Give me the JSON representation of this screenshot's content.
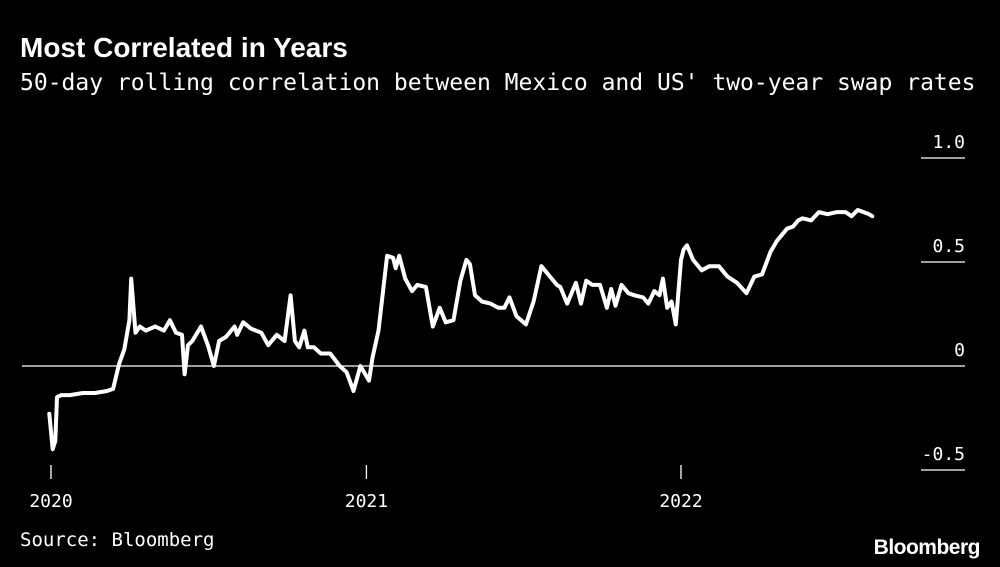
{
  "header": {
    "title": "Most Correlated in Years",
    "subtitle": "50-day rolling correlation between Mexico and US' two-year swap rates"
  },
  "footer": {
    "source": "Source: Bloomberg",
    "brand": "Bloomberg"
  },
  "colors": {
    "background": "#000000",
    "line": "#ffffff",
    "text": "#ffffff"
  },
  "chart_data": {
    "type": "line",
    "title": "Most Correlated in Years",
    "subtitle": "50-day rolling correlation between Mexico and US' two-year swap rates",
    "xlabel": "",
    "ylabel": "",
    "xlim": [
      "2020-01-01",
      "2022-09-01"
    ],
    "ylim": [
      -0.5,
      1.0
    ],
    "x_ticks": [
      {
        "date": "2020-01-01",
        "label": "2020"
      },
      {
        "date": "2021-01-01",
        "label": "2021"
      },
      {
        "date": "2022-01-01",
        "label": "2022"
      }
    ],
    "y_ticks": [
      {
        "value": 1.0,
        "label": "1.0"
      },
      {
        "value": 0.5,
        "label": "0.5"
      },
      {
        "value": 0,
        "label": "0"
      },
      {
        "value": -0.5,
        "label": "-0.5"
      }
    ],
    "grid": false,
    "zero_line": true,
    "legend": "none",
    "series": [
      {
        "x": [
          "2019-12-30",
          "2020-01-03",
          "2020-01-06",
          "2020-01-08",
          "2020-01-13",
          "2020-01-23",
          "2020-02-07",
          "2020-02-21",
          "2020-03-06",
          "2020-03-13",
          "2020-03-20",
          "2020-03-26",
          "2020-04-01",
          "2020-04-03",
          "2020-04-08",
          "2020-04-13",
          "2020-04-20",
          "2020-05-01",
          "2020-05-11",
          "2020-05-18",
          "2020-05-25",
          "2020-06-01",
          "2020-06-04",
          "2020-06-08",
          "2020-06-13",
          "2020-06-23",
          "2020-07-01",
          "2020-07-08",
          "2020-07-14",
          "2020-07-22",
          "2020-08-01",
          "2020-08-04",
          "2020-08-11",
          "2020-08-20",
          "2020-09-01",
          "2020-09-09",
          "2020-09-19",
          "2020-09-28",
          "2020-10-05",
          "2020-10-10",
          "2020-10-15",
          "2020-10-21",
          "2020-10-25",
          "2020-11-01",
          "2020-11-09",
          "2020-11-20",
          "2020-12-01",
          "2020-12-09",
          "2020-12-17",
          "2020-12-25",
          "2021-01-04",
          "2021-01-08",
          "2021-01-15",
          "2021-01-25",
          "2021-02-01",
          "2021-02-04",
          "2021-02-08",
          "2021-02-15",
          "2021-02-23",
          "2021-03-01",
          "2021-03-11",
          "2021-03-19",
          "2021-03-27",
          "2021-04-03",
          "2021-04-12",
          "2021-04-20",
          "2021-04-27",
          "2021-05-01",
          "2021-05-07",
          "2021-05-15",
          "2021-05-25",
          "2021-06-03",
          "2021-06-10",
          "2021-06-16",
          "2021-06-24",
          "2021-07-05",
          "2021-07-14",
          "2021-07-23",
          "2021-08-02",
          "2021-08-10",
          "2021-08-14",
          "2021-08-22",
          "2021-09-01",
          "2021-09-07",
          "2021-09-13",
          "2021-09-20",
          "2021-09-29",
          "2021-10-07",
          "2021-10-12",
          "2021-10-17",
          "2021-10-24",
          "2021-11-01",
          "2021-11-08",
          "2021-11-18",
          "2021-11-24",
          "2021-12-01",
          "2021-12-07",
          "2021-12-11",
          "2021-12-16",
          "2021-12-21",
          "2021-12-26",
          "2022-01-01",
          "2022-01-04",
          "2022-01-08",
          "2022-01-15",
          "2022-01-25",
          "2022-02-03",
          "2022-02-14",
          "2022-02-24",
          "2022-03-07",
          "2022-03-18",
          "2022-03-27",
          "2022-04-05",
          "2022-04-15",
          "2022-04-22",
          "2022-05-04",
          "2022-05-11",
          "2022-05-17",
          "2022-05-22",
          "2022-06-01",
          "2022-06-10",
          "2022-06-20",
          "2022-07-01",
          "2022-07-11",
          "2022-07-18",
          "2022-07-25",
          "2022-08-01",
          "2022-08-07",
          "2022-08-11"
        ],
        "y": [
          -0.23,
          -0.4,
          -0.36,
          -0.15,
          -0.14,
          -0.14,
          -0.13,
          -0.13,
          -0.12,
          -0.11,
          0.01,
          0.08,
          0.22,
          0.42,
          0.16,
          0.19,
          0.17,
          0.19,
          0.17,
          0.22,
          0.16,
          0.15,
          -0.04,
          0.1,
          0.12,
          0.19,
          0.1,
          0.0,
          0.12,
          0.14,
          0.19,
          0.15,
          0.21,
          0.18,
          0.16,
          0.1,
          0.15,
          0.12,
          0.34,
          0.12,
          0.09,
          0.17,
          0.09,
          0.09,
          0.06,
          0.06,
          0.0,
          -0.03,
          -0.12,
          0.0,
          -0.07,
          0.04,
          0.17,
          0.53,
          0.52,
          0.47,
          0.53,
          0.42,
          0.36,
          0.39,
          0.38,
          0.19,
          0.28,
          0.21,
          0.22,
          0.41,
          0.51,
          0.49,
          0.34,
          0.31,
          0.3,
          0.28,
          0.28,
          0.33,
          0.24,
          0.2,
          0.31,
          0.48,
          0.43,
          0.39,
          0.38,
          0.3,
          0.4,
          0.3,
          0.41,
          0.39,
          0.39,
          0.28,
          0.37,
          0.29,
          0.39,
          0.35,
          0.34,
          0.33,
          0.3,
          0.36,
          0.34,
          0.42,
          0.28,
          0.31,
          0.2,
          0.51,
          0.56,
          0.58,
          0.51,
          0.46,
          0.48,
          0.48,
          0.43,
          0.4,
          0.35,
          0.43,
          0.44,
          0.55,
          0.6,
          0.66,
          0.67,
          0.7,
          0.71,
          0.7,
          0.74,
          0.73,
          0.74,
          0.74,
          0.72,
          0.75,
          0.74,
          0.73,
          0.72
        ]
      }
    ]
  }
}
